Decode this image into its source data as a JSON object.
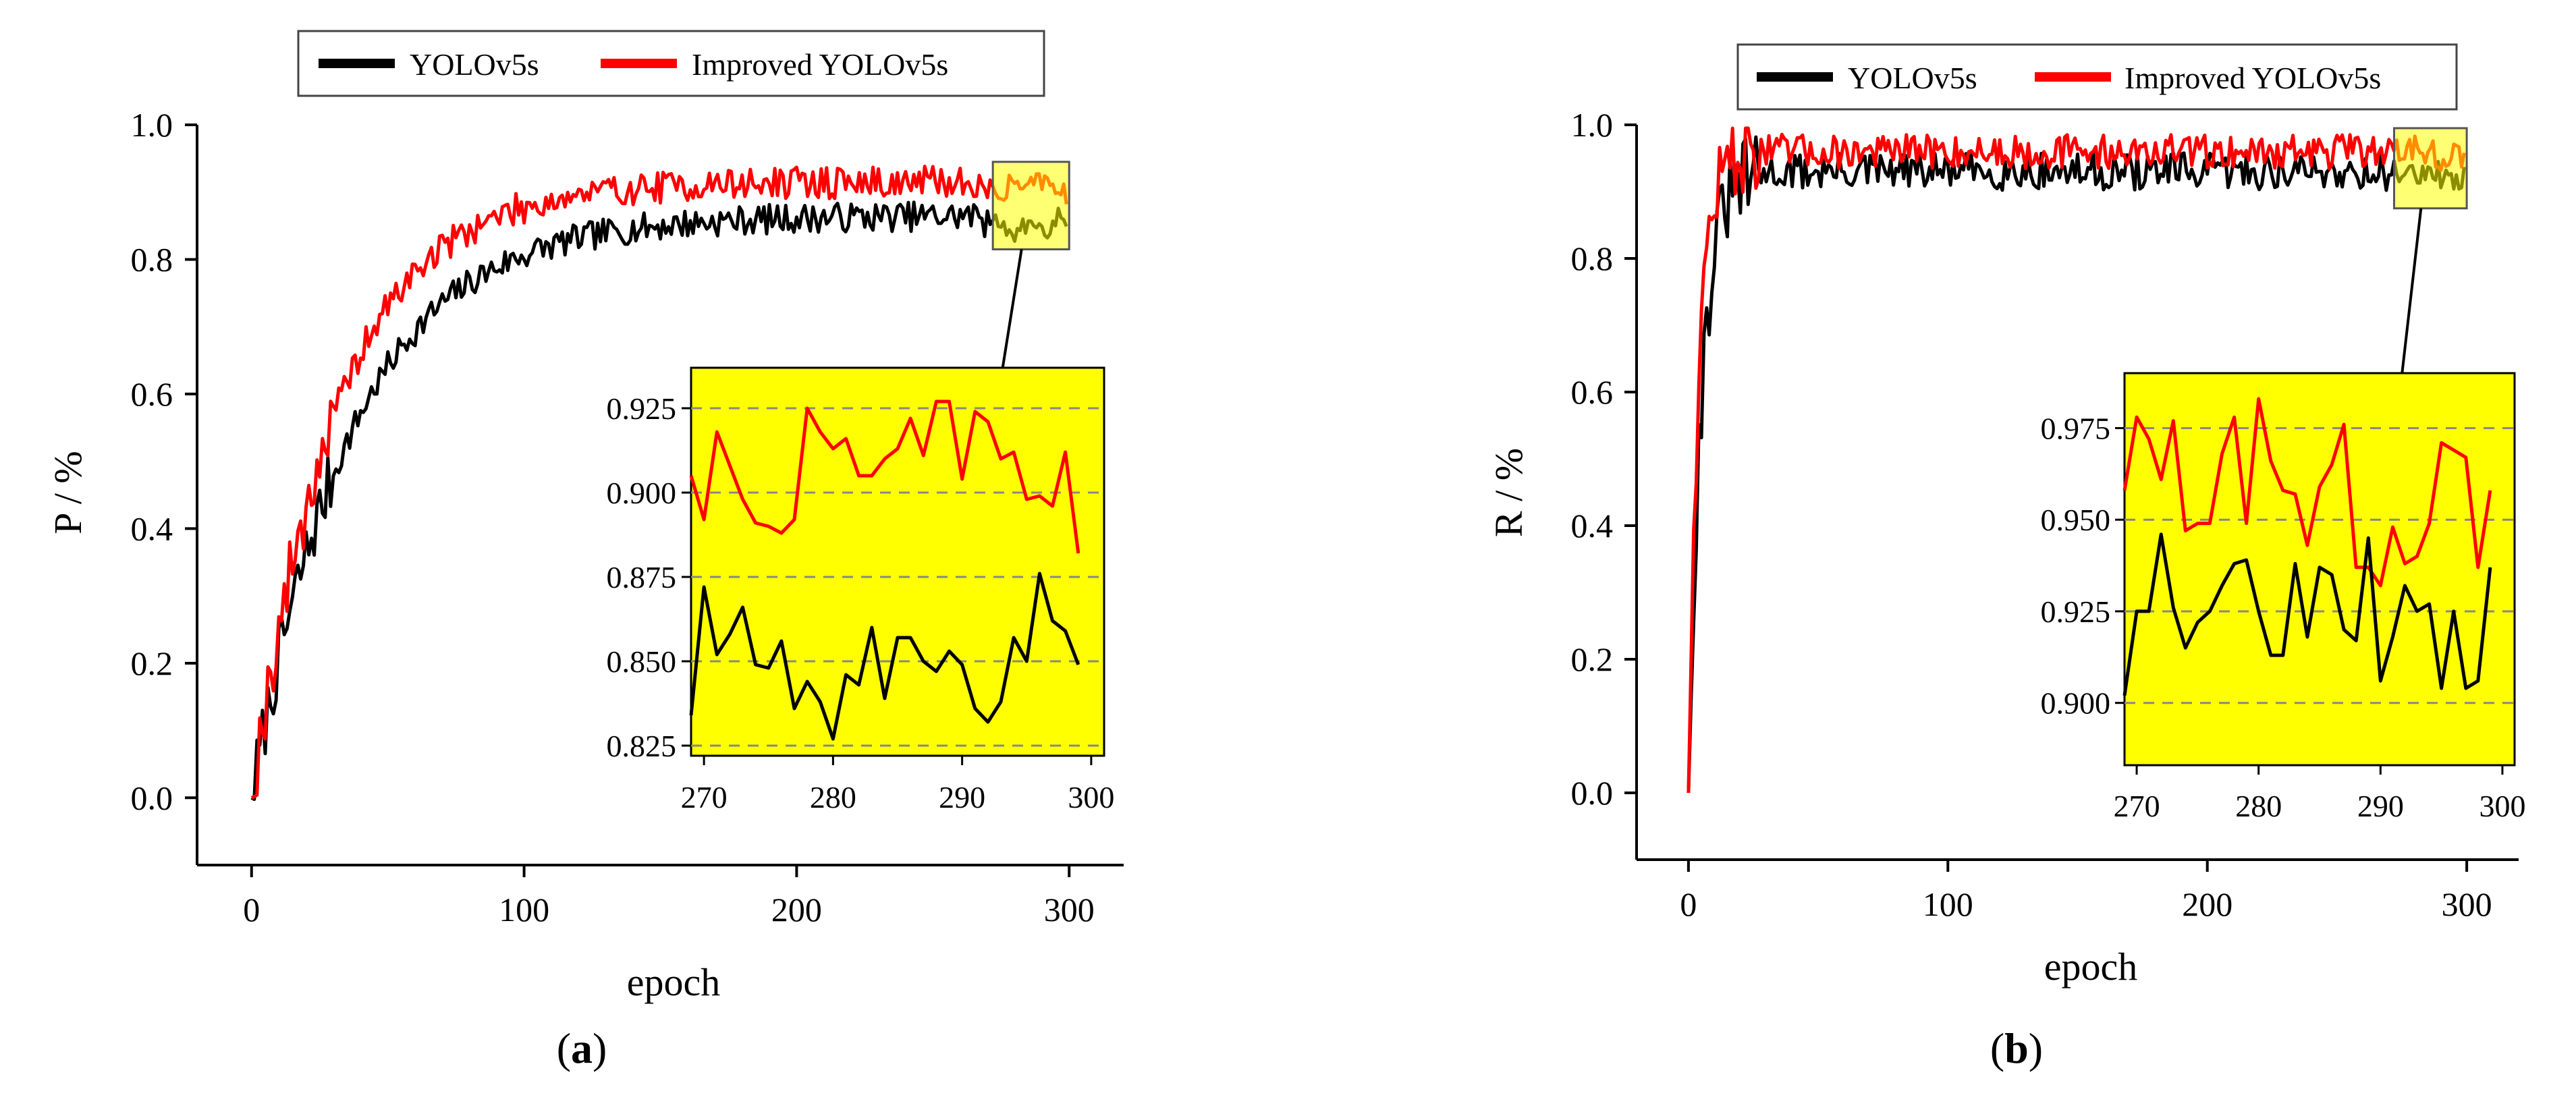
{
  "chart_data": [
    {
      "type": "line",
      "panel": "a",
      "caption": "(a)",
      "caption_paren_open": "(",
      "caption_letter": "a",
      "caption_paren_close": ")",
      "xlabel": "epoch",
      "ylabel": "P / %",
      "xlim": [
        -20,
        320
      ],
      "ylim": [
        -0.1,
        1.0
      ],
      "xticks": [
        0,
        100,
        200,
        300
      ],
      "xtick_labels": [
        "0",
        "100",
        "200",
        "300"
      ],
      "yticks": [
        0.0,
        0.2,
        0.4,
        0.6,
        0.8,
        1.0
      ],
      "ytick_labels": [
        "0.0",
        "0.2",
        "0.4",
        "0.6",
        "0.8",
        "1.0"
      ],
      "legend": [
        "YOLOv5s",
        "Improved YOLOv5s"
      ],
      "legend_position": "top-center",
      "series_shape": [
        {
          "name": "YOLOv5s",
          "color": "#000000",
          "start": 0.0,
          "plateau": 0.865,
          "rate": 0.027,
          "noise": 0.022,
          "seed": 7
        },
        {
          "name": "Improved YOLOv5s",
          "color": "#ff0000",
          "start": 0.0,
          "plateau": 0.915,
          "rate": 0.032,
          "noise": 0.024,
          "seed": 19
        }
      ],
      "highlight_box_range_x": [
        272,
        300
      ],
      "highlight_box_range_y": [
        0.815,
        0.945
      ],
      "inset": {
        "xlim": [
          269,
          301
        ],
        "ylim": [
          0.822,
          0.937
        ],
        "xticks": [
          270,
          280,
          290,
          300
        ],
        "xtick_labels": [
          "270",
          "280",
          "290",
          "300"
        ],
        "yticks": [
          0.825,
          0.85,
          0.875,
          0.9,
          0.925
        ],
        "ytick_labels": [
          "0.825",
          "0.850",
          "0.875",
          "0.900",
          "0.925"
        ],
        "gridlines": "dashed",
        "background": "#ffff00",
        "x": [
          269,
          270,
          271,
          272,
          273,
          274,
          275,
          276,
          277,
          278,
          279,
          280,
          281,
          282,
          283,
          284,
          285,
          286,
          287,
          288,
          289,
          290,
          291,
          292,
          293,
          294,
          295,
          296,
          297,
          298,
          299
        ],
        "series": [
          {
            "name": "Improved YOLOv5s",
            "color": "#ff0000",
            "values": [
              0.905,
              0.892,
              0.918,
              0.908,
              0.898,
              0.891,
              0.89,
              0.888,
              0.892,
              0.925,
              0.918,
              0.913,
              0.916,
              0.905,
              0.905,
              0.91,
              0.913,
              0.922,
              0.911,
              0.927,
              0.927,
              0.904,
              0.924,
              0.921,
              0.91,
              0.912,
              0.898,
              0.899,
              0.896,
              0.912,
              0.882
            ]
          },
          {
            "name": "YOLOv5s",
            "color": "#000000",
            "values": [
              0.834,
              0.872,
              0.852,
              0.858,
              0.866,
              0.849,
              0.848,
              0.856,
              0.836,
              0.844,
              0.838,
              0.827,
              0.846,
              0.843,
              0.86,
              0.839,
              0.857,
              0.857,
              0.85,
              0.847,
              0.853,
              0.849,
              0.836,
              0.832,
              0.838,
              0.857,
              0.85,
              0.876,
              0.862,
              0.859,
              0.849
            ]
          }
        ]
      }
    },
    {
      "type": "line",
      "panel": "b",
      "caption": "(b)",
      "caption_paren_open": "(",
      "caption_letter": "b",
      "caption_paren_close": ")",
      "xlabel": "epoch",
      "ylabel": "R / %",
      "xlim": [
        -20,
        320
      ],
      "ylim": [
        -0.1,
        1.0
      ],
      "xticks": [
        0,
        100,
        200,
        300
      ],
      "xtick_labels": [
        "0",
        "100",
        "200",
        "300"
      ],
      "yticks": [
        0.0,
        0.2,
        0.4,
        0.6,
        0.8,
        1.0
      ],
      "ytick_labels": [
        "0.0",
        "0.2",
        "0.4",
        "0.6",
        "0.8",
        "1.0"
      ],
      "legend": [
        "YOLOv5s",
        "Improved YOLOv5s"
      ],
      "legend_position": "top-center",
      "series_shape": [
        {
          "name": "YOLOv5s",
          "color": "#000000",
          "start": 0.0,
          "plateau": 0.93,
          "rate": 0.2,
          "noise": 0.028,
          "seed": 31
        },
        {
          "name": "Improved YOLOv5s",
          "color": "#ff0000",
          "start": 0.0,
          "plateau": 0.96,
          "rate": 0.26,
          "noise": 0.026,
          "seed": 47
        }
      ],
      "highlight_box_range_x": [
        272,
        300
      ],
      "highlight_box_range_y": [
        0.875,
        0.995
      ],
      "inset": {
        "xlim": [
          269,
          301
        ],
        "ylim": [
          0.883,
          0.99
        ],
        "xticks": [
          270,
          280,
          290,
          300
        ],
        "xtick_labels": [
          "270",
          "280",
          "290",
          "300"
        ],
        "yticks": [
          0.9,
          0.925,
          0.95,
          0.975
        ],
        "ytick_labels": [
          "0.900",
          "0.925",
          "0.950",
          "0.975"
        ],
        "gridlines": "dashed",
        "background": "#ffff00",
        "x": [
          269,
          270,
          271,
          272,
          273,
          274,
          275,
          276,
          277,
          278,
          279,
          280,
          281,
          282,
          283,
          284,
          285,
          286,
          287,
          288,
          289,
          290,
          291,
          292,
          293,
          294,
          295,
          296,
          297,
          298,
          299
        ],
        "series": [
          {
            "name": "Improved YOLOv5s",
            "color": "#ff0000",
            "values": [
              0.958,
              0.978,
              0.972,
              0.961,
              0.977,
              0.947,
              0.949,
              0.949,
              0.968,
              0.978,
              0.949,
              0.983,
              0.966,
              0.958,
              0.957,
              0.943,
              0.959,
              0.965,
              0.976,
              0.937,
              0.937,
              0.932,
              0.948,
              0.938,
              0.94,
              0.949,
              0.971,
              0.969,
              0.967,
              0.937,
              0.958
            ]
          },
          {
            "name": "YOLOv5s",
            "color": "#000000",
            "values": [
              0.902,
              0.925,
              0.925,
              0.946,
              0.926,
              0.915,
              0.922,
              0.925,
              0.932,
              0.938,
              0.939,
              0.925,
              0.913,
              0.913,
              0.938,
              0.918,
              0.937,
              0.935,
              0.92,
              0.917,
              0.945,
              0.906,
              0.918,
              0.932,
              0.925,
              0.927,
              0.904,
              0.925,
              0.904,
              0.906,
              0.937
            ]
          }
        ]
      }
    }
  ]
}
